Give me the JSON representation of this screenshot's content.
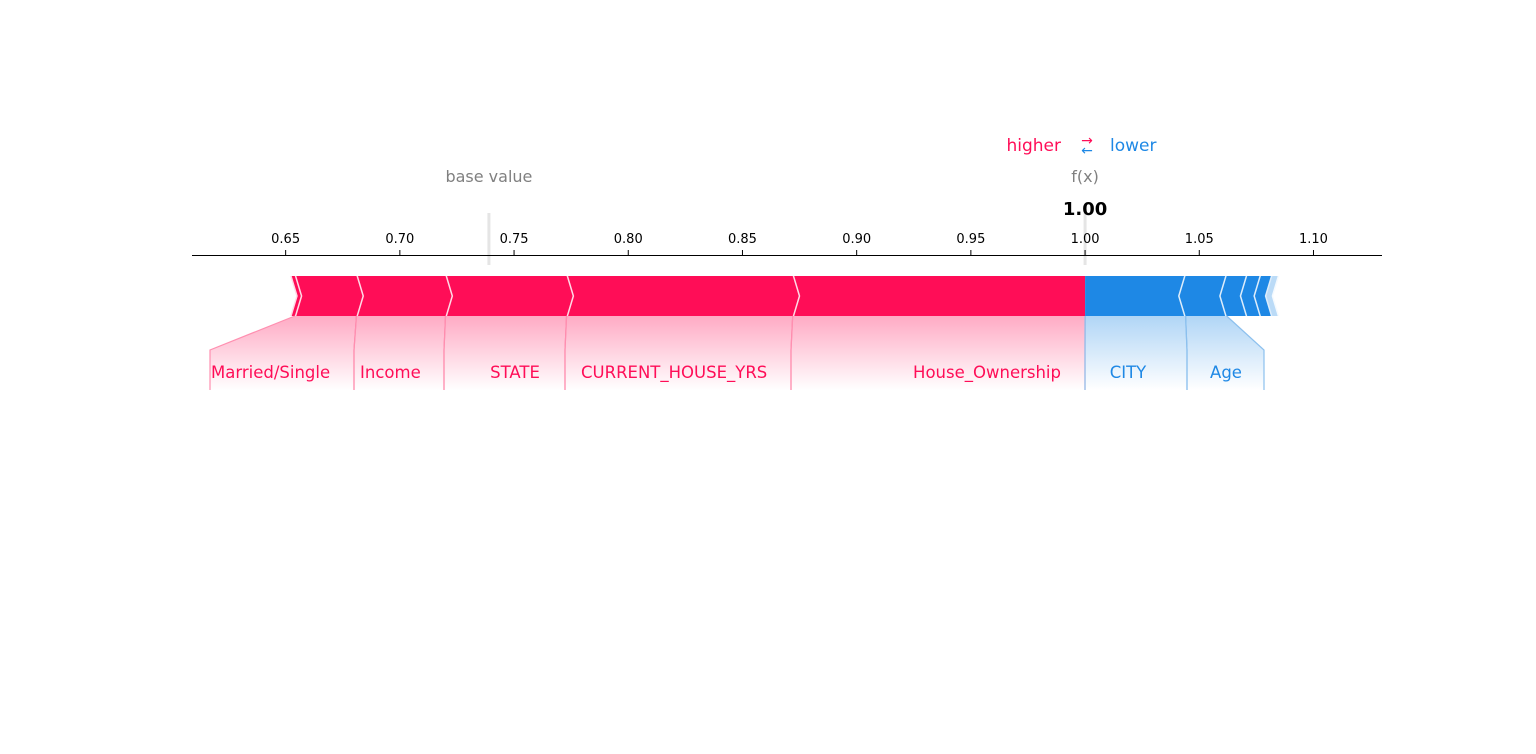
{
  "legend": {
    "higher": "higher",
    "lower": "lower",
    "arrow_up": "→",
    "arrow_down": "←"
  },
  "base_label": "base value",
  "fx_label": "f(x)",
  "colors": {
    "positive": "#ff0d57",
    "negative": "#1e88e5",
    "positive_light": "#ff8fb0",
    "negative_light": "#8cc0ee",
    "neutral_text": "#808080",
    "axis": "#000000"
  },
  "chart_data": {
    "type": "force",
    "base_value": 0.739,
    "output_value": 1.0,
    "output_label": "1.00",
    "xlim": [
      0.609,
      1.13
    ],
    "ticks": [
      {
        "value": 0.65,
        "label": "0.65"
      },
      {
        "value": 0.7,
        "label": "0.70"
      },
      {
        "value": 0.75,
        "label": "0.75"
      },
      {
        "value": 0.8,
        "label": "0.80"
      },
      {
        "value": 0.85,
        "label": "0.85"
      },
      {
        "value": 0.9,
        "label": "0.90"
      },
      {
        "value": 0.95,
        "label": "0.95"
      },
      {
        "value": 1.0,
        "label": "1.00"
      },
      {
        "value": 1.05,
        "label": "1.05"
      },
      {
        "value": 1.1,
        "label": "1.10"
      }
    ],
    "positive_features": [
      {
        "name": "House_Ownership",
        "start": 0.872,
        "end": 1.0
      },
      {
        "name": "CURRENT_HOUSE_YRS",
        "start": 0.773,
        "end": 0.872
      },
      {
        "name": "STATE",
        "start": 0.72,
        "end": 0.773
      },
      {
        "name": "Income",
        "start": 0.681,
        "end": 0.72
      },
      {
        "name": "Married/Single",
        "start": 0.654,
        "end": 0.681
      },
      {
        "name": "",
        "start": 0.652,
        "end": 0.654
      }
    ],
    "negative_features": [
      {
        "name": "CITY",
        "start": 1.0,
        "end": 1.044
      },
      {
        "name": "Age",
        "start": 1.044,
        "end": 1.062
      },
      {
        "name": "",
        "start": 1.062,
        "end": 1.071
      },
      {
        "name": "",
        "start": 1.071,
        "end": 1.077
      },
      {
        "name": "",
        "start": 1.077,
        "end": 1.082
      },
      {
        "name": "",
        "start": 1.082,
        "end": 1.085
      }
    ]
  }
}
